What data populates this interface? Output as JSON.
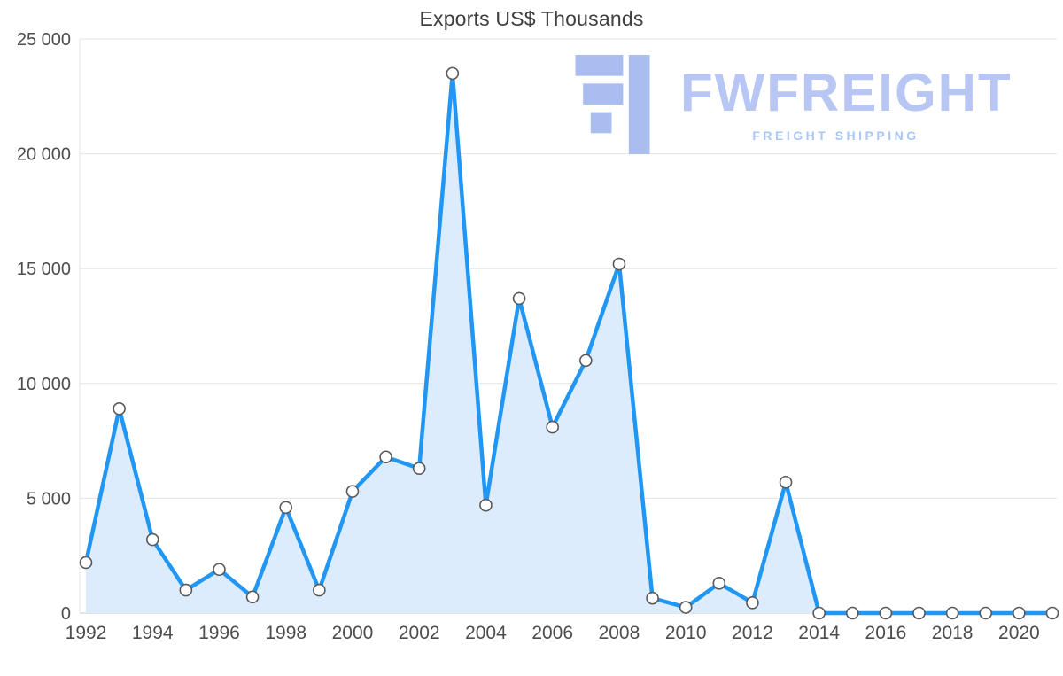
{
  "watermark": {
    "brand": "FWFREIGHT",
    "tagline": "FREIGHT SHIPPING",
    "brand_color": "#b7c6f3",
    "tagline_color": "#a9c6f6",
    "logo_color": "#a9bdf1"
  },
  "chart_data": {
    "type": "area",
    "title": "Exports US$ Thousands",
    "x": [
      1992,
      1993,
      1994,
      1995,
      1996,
      1997,
      1998,
      1999,
      2000,
      2001,
      2002,
      2003,
      2004,
      2005,
      2006,
      2007,
      2008,
      2009,
      2010,
      2011,
      2012,
      2013,
      2014,
      2015,
      2016,
      2017,
      2018,
      2019,
      2020,
      2021
    ],
    "values": [
      2200,
      8900,
      3200,
      1000,
      1900,
      700,
      4600,
      1000,
      5300,
      6800,
      6300,
      23500,
      4700,
      13700,
      8100,
      11000,
      15200,
      650,
      250,
      1300,
      450,
      5700,
      0,
      0,
      0,
      0,
      0,
      0,
      0,
      0
    ],
    "ylim": [
      0,
      25000
    ],
    "yticks": [
      0,
      5000,
      10000,
      15000,
      20000,
      25000
    ],
    "ytick_labels": [
      "0",
      "5 000",
      "10 000",
      "15 000",
      "20 000",
      "25 000"
    ],
    "xtick_labels": [
      "1992",
      "1994",
      "1996",
      "1998",
      "2000",
      "2002",
      "2004",
      "2006",
      "2008",
      "2010",
      "2012",
      "2014",
      "2016",
      "2018",
      "2020"
    ],
    "grid": true,
    "legend": false,
    "line_color": "#2196f3",
    "fill_color": "#dcecfc",
    "marker_fill": "#ffffff",
    "marker_stroke": "#58595b",
    "grid_color": "#e4e4e4",
    "axis_color": "#c9c9c9",
    "label_color": "#4d4d4d"
  }
}
